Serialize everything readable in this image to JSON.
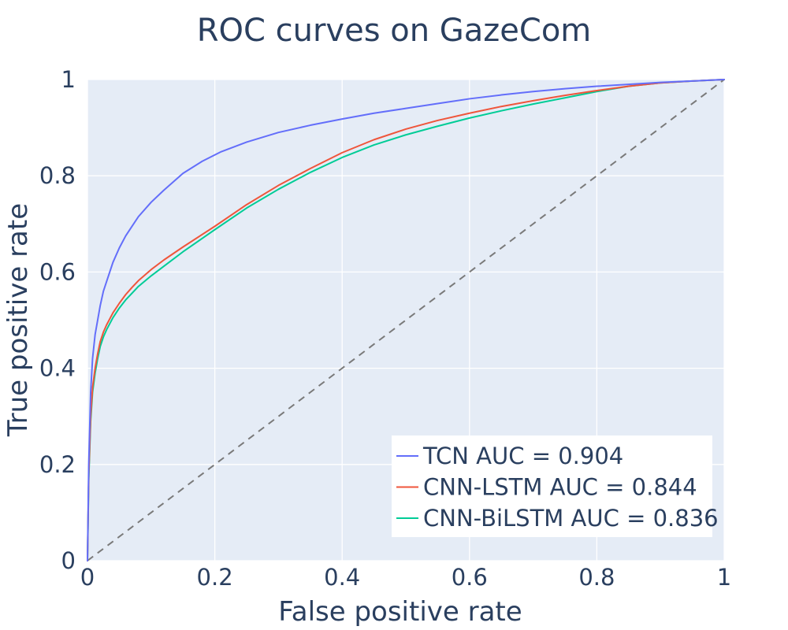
{
  "chart_data": {
    "type": "line",
    "title": "ROC curves on GazeCom",
    "xlabel": "False positive rate",
    "ylabel": "True positive rate",
    "xlim": [
      0,
      1
    ],
    "ylim": [
      0,
      1
    ],
    "x_ticks": [
      0,
      0.2,
      0.4,
      0.6,
      0.8,
      1
    ],
    "y_ticks": [
      0,
      0.2,
      0.4,
      0.6,
      0.8,
      1
    ],
    "x_tick_labels": [
      "0",
      "0.2",
      "0.4",
      "0.6",
      "0.8",
      "1"
    ],
    "y_tick_labels": [
      "0",
      "0.2",
      "0.4",
      "0.6",
      "0.8",
      "1"
    ],
    "grid": true,
    "legend_position": "bottom-right",
    "plot_background": "#e5ecf6",
    "series": [
      {
        "name": "TCN AUC = 0.904",
        "color": "#636efa",
        "x": [
          0,
          0.002,
          0.005,
          0.008,
          0.012,
          0.016,
          0.02,
          0.025,
          0.03,
          0.04,
          0.05,
          0.06,
          0.07,
          0.08,
          0.1,
          0.12,
          0.15,
          0.18,
          0.21,
          0.25,
          0.3,
          0.35,
          0.4,
          0.45,
          0.5,
          0.55,
          0.6,
          0.65,
          0.7,
          0.75,
          0.8,
          0.85,
          0.9,
          0.95,
          1.0
        ],
        "y": [
          0,
          0.2,
          0.35,
          0.42,
          0.47,
          0.5,
          0.53,
          0.56,
          0.58,
          0.62,
          0.65,
          0.675,
          0.695,
          0.715,
          0.745,
          0.77,
          0.805,
          0.83,
          0.85,
          0.87,
          0.89,
          0.905,
          0.918,
          0.93,
          0.94,
          0.95,
          0.96,
          0.968,
          0.975,
          0.981,
          0.986,
          0.99,
          0.994,
          0.997,
          1.0
        ]
      },
      {
        "name": "CNN-LSTM AUC = 0.844",
        "color": "#ef553b",
        "x": [
          0,
          0.002,
          0.005,
          0.008,
          0.012,
          0.016,
          0.02,
          0.025,
          0.03,
          0.04,
          0.05,
          0.06,
          0.07,
          0.08,
          0.1,
          0.12,
          0.15,
          0.2,
          0.25,
          0.3,
          0.35,
          0.4,
          0.45,
          0.5,
          0.55,
          0.6,
          0.65,
          0.7,
          0.75,
          0.8,
          0.85,
          0.9,
          0.95,
          1.0
        ],
        "y": [
          0,
          0.18,
          0.3,
          0.36,
          0.4,
          0.43,
          0.455,
          0.475,
          0.49,
          0.515,
          0.535,
          0.553,
          0.568,
          0.582,
          0.605,
          0.625,
          0.652,
          0.695,
          0.74,
          0.78,
          0.815,
          0.848,
          0.875,
          0.897,
          0.915,
          0.93,
          0.944,
          0.956,
          0.967,
          0.977,
          0.986,
          0.993,
          0.997,
          1.0
        ]
      },
      {
        "name": "CNN-BiLSTM AUC = 0.836",
        "color": "#00cc96",
        "x": [
          0,
          0.002,
          0.005,
          0.008,
          0.012,
          0.016,
          0.02,
          0.025,
          0.03,
          0.04,
          0.05,
          0.06,
          0.07,
          0.08,
          0.1,
          0.12,
          0.15,
          0.2,
          0.25,
          0.3,
          0.35,
          0.4,
          0.45,
          0.5,
          0.55,
          0.6,
          0.65,
          0.7,
          0.75,
          0.8,
          0.85,
          0.9,
          0.95,
          1.0
        ],
        "y": [
          0,
          0.17,
          0.29,
          0.35,
          0.39,
          0.42,
          0.445,
          0.465,
          0.48,
          0.505,
          0.525,
          0.542,
          0.556,
          0.57,
          0.592,
          0.612,
          0.642,
          0.688,
          0.733,
          0.772,
          0.807,
          0.838,
          0.864,
          0.885,
          0.903,
          0.92,
          0.935,
          0.949,
          0.962,
          0.975,
          0.986,
          0.993,
          0.997,
          1.0
        ]
      }
    ],
    "reference_line": {
      "color": "#7a7a7a",
      "x": [
        0,
        1
      ],
      "y": [
        0,
        1
      ]
    }
  }
}
